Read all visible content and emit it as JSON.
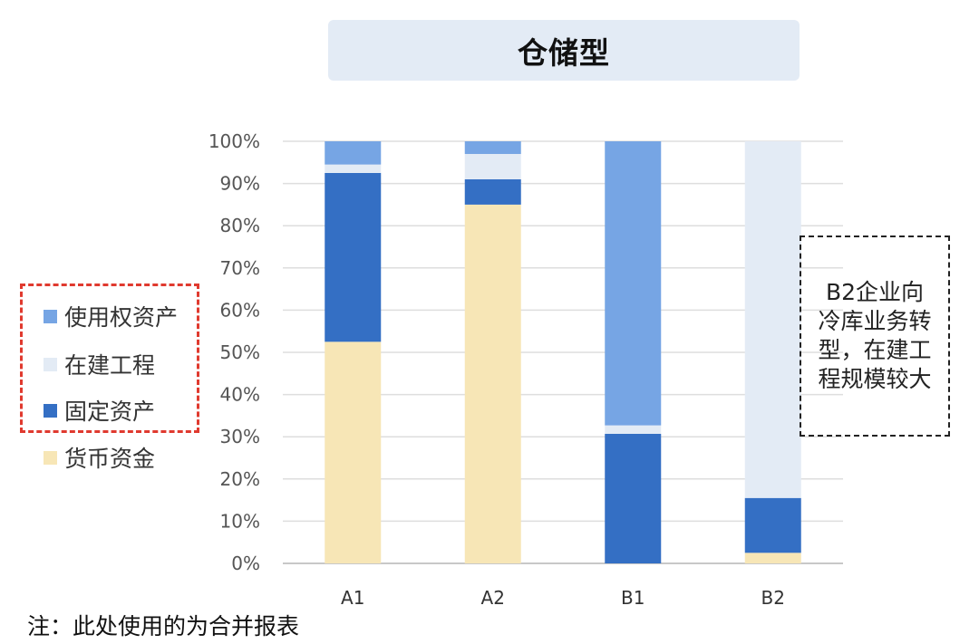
{
  "title": "仓储型",
  "note_box": {
    "text": "B2企业向冷库业务转型，在建工程规模较大"
  },
  "footnote": "注：此处使用的为合并报表",
  "legend": {
    "items": [
      {
        "label": "使用权资产",
        "color": "#76a5e4"
      },
      {
        "label": "在建工程",
        "color": "#e3ebf5"
      },
      {
        "label": "固定资产",
        "color": "#346fc4"
      },
      {
        "label": "货币资金",
        "color": "#f7e6b6"
      }
    ]
  },
  "chart_data": {
    "type": "bar",
    "stacked": true,
    "categories": [
      "A1",
      "A2",
      "B1",
      "B2"
    ],
    "series": [
      {
        "name": "货币资金",
        "color": "#f7e6b6",
        "values": [
          52.5,
          85,
          0,
          2.5
        ]
      },
      {
        "name": "固定资产",
        "color": "#346fc4",
        "values": [
          40,
          6,
          30.7,
          13
        ]
      },
      {
        "name": "在建工程",
        "color": "#e3ebf5",
        "values": [
          2,
          6,
          2,
          84.5
        ]
      },
      {
        "name": "使用权资产",
        "color": "#76a5e4",
        "values": [
          5.5,
          3,
          67.3,
          0
        ]
      }
    ],
    "ylim": [
      0,
      100
    ],
    "y_ticks": [
      "0%",
      "10%",
      "20%",
      "30%",
      "40%",
      "50%",
      "60%",
      "70%",
      "80%",
      "90%",
      "100%"
    ],
    "grid": true,
    "legend_position": "left"
  }
}
